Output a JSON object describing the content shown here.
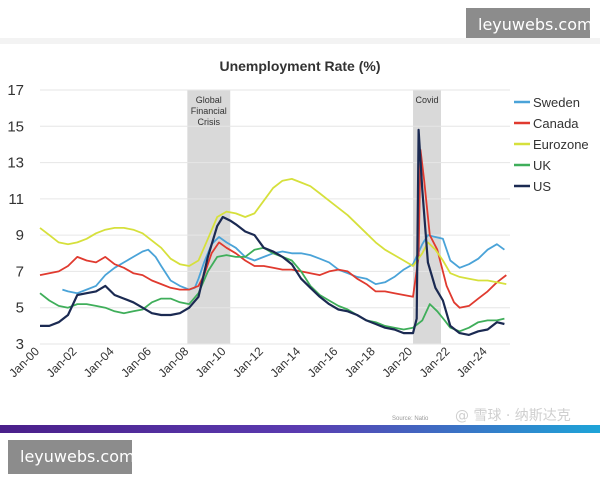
{
  "watermark": {
    "top": "leyuwebs.com",
    "bottom": "leyuwebs.com"
  },
  "footer": {
    "source": "Source: Natio",
    "marks": "@ 雪球 · 纳斯达克"
  },
  "chart_data": {
    "type": "line",
    "title": "Unemployment Rate (%)",
    "xlabel": "",
    "ylabel": "",
    "ylim": [
      3,
      17
    ],
    "xlim": [
      2000,
      2025.2
    ],
    "yticks": [
      3,
      5,
      7,
      9,
      11,
      13,
      15,
      17
    ],
    "x_ticks": [
      {
        "label": "Jan-00",
        "x": 2000
      },
      {
        "label": "Jan-02",
        "x": 2002
      },
      {
        "label": "Jan-04",
        "x": 2004
      },
      {
        "label": "Jan-06",
        "x": 2006
      },
      {
        "label": "Jan-08",
        "x": 2008
      },
      {
        "label": "Jan-10",
        "x": 2010
      },
      {
        "label": "Jan-12",
        "x": 2012
      },
      {
        "label": "Jan-14",
        "x": 2014
      },
      {
        "label": "Jan-16",
        "x": 2016
      },
      {
        "label": "Jan-18",
        "x": 2018
      },
      {
        "label": "Jan-20",
        "x": 2020
      },
      {
        "label": "Jan-22",
        "x": 2022
      },
      {
        "label": "Jan-24",
        "x": 2024
      }
    ],
    "grid": true,
    "shaded_periods": [
      {
        "label_lines": [
          "Global",
          "Financial",
          "Crisis"
        ],
        "start": 2007.9,
        "end": 2010.2
      },
      {
        "label_lines": [
          "Covid"
        ],
        "start": 2020.0,
        "end": 2021.5
      }
    ],
    "legend_position": "right",
    "series": [
      {
        "name": "Sweden",
        "color": "#4aa3d8",
        "points": [
          [
            2001.2,
            6.0
          ],
          [
            2001.5,
            5.9
          ],
          [
            2002.0,
            5.8
          ],
          [
            2002.5,
            6.0
          ],
          [
            2003.0,
            6.2
          ],
          [
            2003.5,
            6.8
          ],
          [
            2004.0,
            7.2
          ],
          [
            2004.5,
            7.5
          ],
          [
            2005.0,
            7.8
          ],
          [
            2005.5,
            8.1
          ],
          [
            2005.8,
            8.2
          ],
          [
            2006.2,
            7.8
          ],
          [
            2006.5,
            7.3
          ],
          [
            2007.0,
            6.5
          ],
          [
            2007.5,
            6.2
          ],
          [
            2008.0,
            6.0
          ],
          [
            2008.3,
            6.1
          ],
          [
            2008.5,
            6.6
          ],
          [
            2008.8,
            7.5
          ],
          [
            2009.2,
            8.5
          ],
          [
            2009.6,
            8.9
          ],
          [
            2010.0,
            8.6
          ],
          [
            2010.5,
            8.3
          ],
          [
            2011.0,
            7.8
          ],
          [
            2011.5,
            7.6
          ],
          [
            2012.0,
            7.8
          ],
          [
            2012.5,
            8.0
          ],
          [
            2013.0,
            8.1
          ],
          [
            2013.5,
            8.0
          ],
          [
            2014.0,
            8.0
          ],
          [
            2014.5,
            7.9
          ],
          [
            2015.0,
            7.7
          ],
          [
            2015.5,
            7.5
          ],
          [
            2016.0,
            7.1
          ],
          [
            2016.5,
            6.9
          ],
          [
            2017.0,
            6.7
          ],
          [
            2017.5,
            6.6
          ],
          [
            2018.0,
            6.3
          ],
          [
            2018.5,
            6.4
          ],
          [
            2019.0,
            6.7
          ],
          [
            2019.5,
            7.1
          ],
          [
            2020.0,
            7.4
          ],
          [
            2020.5,
            8.5
          ],
          [
            2020.8,
            9.0
          ],
          [
            2021.2,
            8.9
          ],
          [
            2021.6,
            8.8
          ],
          [
            2022.0,
            7.6
          ],
          [
            2022.5,
            7.2
          ],
          [
            2023.0,
            7.4
          ],
          [
            2023.5,
            7.7
          ],
          [
            2024.0,
            8.2
          ],
          [
            2024.5,
            8.5
          ],
          [
            2024.9,
            8.2
          ]
        ]
      },
      {
        "name": "Canada",
        "color": "#e03a2f",
        "points": [
          [
            2000.0,
            6.8
          ],
          [
            2000.5,
            6.9
          ],
          [
            2001.0,
            7.0
          ],
          [
            2001.5,
            7.3
          ],
          [
            2002.0,
            7.8
          ],
          [
            2002.5,
            7.6
          ],
          [
            2003.0,
            7.5
          ],
          [
            2003.5,
            7.8
          ],
          [
            2004.0,
            7.4
          ],
          [
            2004.5,
            7.2
          ],
          [
            2005.0,
            6.9
          ],
          [
            2005.5,
            6.8
          ],
          [
            2006.0,
            6.5
          ],
          [
            2006.5,
            6.3
          ],
          [
            2007.0,
            6.1
          ],
          [
            2007.5,
            6.0
          ],
          [
            2008.0,
            6.0
          ],
          [
            2008.5,
            6.2
          ],
          [
            2008.8,
            6.8
          ],
          [
            2009.2,
            8.0
          ],
          [
            2009.6,
            8.6
          ],
          [
            2010.0,
            8.3
          ],
          [
            2010.5,
            8.0
          ],
          [
            2011.0,
            7.6
          ],
          [
            2011.5,
            7.3
          ],
          [
            2012.0,
            7.3
          ],
          [
            2012.5,
            7.2
          ],
          [
            2013.0,
            7.1
          ],
          [
            2013.5,
            7.1
          ],
          [
            2014.0,
            7.0
          ],
          [
            2014.5,
            6.9
          ],
          [
            2015.0,
            6.8
          ],
          [
            2015.5,
            7.0
          ],
          [
            2016.0,
            7.1
          ],
          [
            2016.5,
            7.0
          ],
          [
            2017.0,
            6.6
          ],
          [
            2017.5,
            6.3
          ],
          [
            2018.0,
            5.9
          ],
          [
            2018.5,
            5.9
          ],
          [
            2019.0,
            5.8
          ],
          [
            2019.5,
            5.7
          ],
          [
            2020.0,
            5.6
          ],
          [
            2020.3,
            7.8
          ],
          [
            2020.4,
            13.7
          ],
          [
            2020.6,
            12.0
          ],
          [
            2020.9,
            9.0
          ],
          [
            2021.3,
            8.2
          ],
          [
            2021.8,
            6.2
          ],
          [
            2022.2,
            5.3
          ],
          [
            2022.5,
            5.0
          ],
          [
            2023.0,
            5.1
          ],
          [
            2023.5,
            5.5
          ],
          [
            2024.0,
            5.9
          ],
          [
            2024.5,
            6.4
          ],
          [
            2025.0,
            6.8
          ]
        ]
      },
      {
        "name": "Eurozone",
        "color": "#d6e03c",
        "points": [
          [
            2000.0,
            9.4
          ],
          [
            2000.5,
            9.0
          ],
          [
            2001.0,
            8.6
          ],
          [
            2001.5,
            8.5
          ],
          [
            2002.0,
            8.6
          ],
          [
            2002.5,
            8.8
          ],
          [
            2003.0,
            9.1
          ],
          [
            2003.5,
            9.3
          ],
          [
            2004.0,
            9.4
          ],
          [
            2004.5,
            9.4
          ],
          [
            2005.0,
            9.3
          ],
          [
            2005.5,
            9.1
          ],
          [
            2006.0,
            8.7
          ],
          [
            2006.5,
            8.3
          ],
          [
            2007.0,
            7.7
          ],
          [
            2007.5,
            7.4
          ],
          [
            2008.0,
            7.3
          ],
          [
            2008.5,
            7.6
          ],
          [
            2009.0,
            8.8
          ],
          [
            2009.5,
            10.0
          ],
          [
            2010.0,
            10.3
          ],
          [
            2010.5,
            10.2
          ],
          [
            2011.0,
            10.0
          ],
          [
            2011.5,
            10.2
          ],
          [
            2012.0,
            10.9
          ],
          [
            2012.5,
            11.6
          ],
          [
            2013.0,
            12.0
          ],
          [
            2013.5,
            12.1
          ],
          [
            2014.0,
            11.9
          ],
          [
            2014.5,
            11.7
          ],
          [
            2015.0,
            11.3
          ],
          [
            2015.5,
            10.9
          ],
          [
            2016.0,
            10.5
          ],
          [
            2016.5,
            10.1
          ],
          [
            2017.0,
            9.6
          ],
          [
            2017.5,
            9.1
          ],
          [
            2018.0,
            8.6
          ],
          [
            2018.5,
            8.2
          ],
          [
            2019.0,
            7.9
          ],
          [
            2019.5,
            7.6
          ],
          [
            2020.0,
            7.3
          ],
          [
            2020.5,
            8.0
          ],
          [
            2020.8,
            8.6
          ],
          [
            2021.2,
            8.2
          ],
          [
            2021.6,
            7.6
          ],
          [
            2022.0,
            6.9
          ],
          [
            2022.5,
            6.7
          ],
          [
            2023.0,
            6.6
          ],
          [
            2023.5,
            6.5
          ],
          [
            2024.0,
            6.5
          ],
          [
            2024.5,
            6.4
          ],
          [
            2025.0,
            6.3
          ]
        ]
      },
      {
        "name": "UK",
        "color": "#3fae5a",
        "points": [
          [
            2000.0,
            5.8
          ],
          [
            2000.5,
            5.4
          ],
          [
            2001.0,
            5.1
          ],
          [
            2001.5,
            5.0
          ],
          [
            2002.0,
            5.2
          ],
          [
            2002.5,
            5.2
          ],
          [
            2003.0,
            5.1
          ],
          [
            2003.5,
            5.0
          ],
          [
            2004.0,
            4.8
          ],
          [
            2004.5,
            4.7
          ],
          [
            2005.0,
            4.8
          ],
          [
            2005.5,
            4.9
          ],
          [
            2006.0,
            5.3
          ],
          [
            2006.5,
            5.5
          ],
          [
            2007.0,
            5.5
          ],
          [
            2007.5,
            5.3
          ],
          [
            2008.0,
            5.2
          ],
          [
            2008.5,
            5.8
          ],
          [
            2009.0,
            7.0
          ],
          [
            2009.5,
            7.8
          ],
          [
            2010.0,
            7.9
          ],
          [
            2010.5,
            7.8
          ],
          [
            2011.0,
            7.8
          ],
          [
            2011.5,
            8.2
          ],
          [
            2012.0,
            8.3
          ],
          [
            2012.5,
            8.0
          ],
          [
            2013.0,
            7.8
          ],
          [
            2013.5,
            7.6
          ],
          [
            2014.0,
            7.0
          ],
          [
            2014.5,
            6.2
          ],
          [
            2015.0,
            5.7
          ],
          [
            2015.5,
            5.4
          ],
          [
            2016.0,
            5.1
          ],
          [
            2016.5,
            4.9
          ],
          [
            2017.0,
            4.6
          ],
          [
            2017.5,
            4.3
          ],
          [
            2018.0,
            4.2
          ],
          [
            2018.5,
            4.0
          ],
          [
            2019.0,
            3.9
          ],
          [
            2019.5,
            3.8
          ],
          [
            2020.0,
            3.9
          ],
          [
            2020.5,
            4.3
          ],
          [
            2020.9,
            5.2
          ],
          [
            2021.3,
            4.8
          ],
          [
            2021.7,
            4.3
          ],
          [
            2022.0,
            3.9
          ],
          [
            2022.5,
            3.7
          ],
          [
            2023.0,
            3.9
          ],
          [
            2023.5,
            4.2
          ],
          [
            2024.0,
            4.3
          ],
          [
            2024.5,
            4.3
          ],
          [
            2024.9,
            4.4
          ]
        ]
      },
      {
        "name": "US",
        "color": "#1b2a52",
        "points": [
          [
            2000.0,
            4.0
          ],
          [
            2000.5,
            4.0
          ],
          [
            2001.0,
            4.2
          ],
          [
            2001.5,
            4.6
          ],
          [
            2002.0,
            5.7
          ],
          [
            2002.5,
            5.8
          ],
          [
            2003.0,
            5.9
          ],
          [
            2003.5,
            6.2
          ],
          [
            2004.0,
            5.7
          ],
          [
            2004.5,
            5.5
          ],
          [
            2005.0,
            5.3
          ],
          [
            2005.5,
            5.0
          ],
          [
            2006.0,
            4.7
          ],
          [
            2006.5,
            4.6
          ],
          [
            2007.0,
            4.6
          ],
          [
            2007.5,
            4.7
          ],
          [
            2008.0,
            5.0
          ],
          [
            2008.5,
            5.6
          ],
          [
            2009.0,
            7.8
          ],
          [
            2009.5,
            9.5
          ],
          [
            2009.8,
            10.0
          ],
          [
            2010.2,
            9.8
          ],
          [
            2010.5,
            9.6
          ],
          [
            2011.0,
            9.2
          ],
          [
            2011.5,
            9.0
          ],
          [
            2012.0,
            8.3
          ],
          [
            2012.5,
            8.1
          ],
          [
            2013.0,
            7.8
          ],
          [
            2013.5,
            7.4
          ],
          [
            2014.0,
            6.6
          ],
          [
            2014.5,
            6.1
          ],
          [
            2015.0,
            5.6
          ],
          [
            2015.5,
            5.2
          ],
          [
            2016.0,
            4.9
          ],
          [
            2016.5,
            4.8
          ],
          [
            2017.0,
            4.6
          ],
          [
            2017.5,
            4.3
          ],
          [
            2018.0,
            4.1
          ],
          [
            2018.5,
            3.9
          ],
          [
            2019.0,
            3.8
          ],
          [
            2019.5,
            3.6
          ],
          [
            2020.0,
            3.6
          ],
          [
            2020.2,
            4.4
          ],
          [
            2020.3,
            14.8
          ],
          [
            2020.5,
            11.5
          ],
          [
            2020.8,
            7.5
          ],
          [
            2021.2,
            6.1
          ],
          [
            2021.6,
            5.4
          ],
          [
            2022.0,
            4.0
          ],
          [
            2022.5,
            3.6
          ],
          [
            2023.0,
            3.5
          ],
          [
            2023.5,
            3.7
          ],
          [
            2024.0,
            3.8
          ],
          [
            2024.5,
            4.2
          ],
          [
            2024.9,
            4.1
          ]
        ]
      }
    ]
  }
}
